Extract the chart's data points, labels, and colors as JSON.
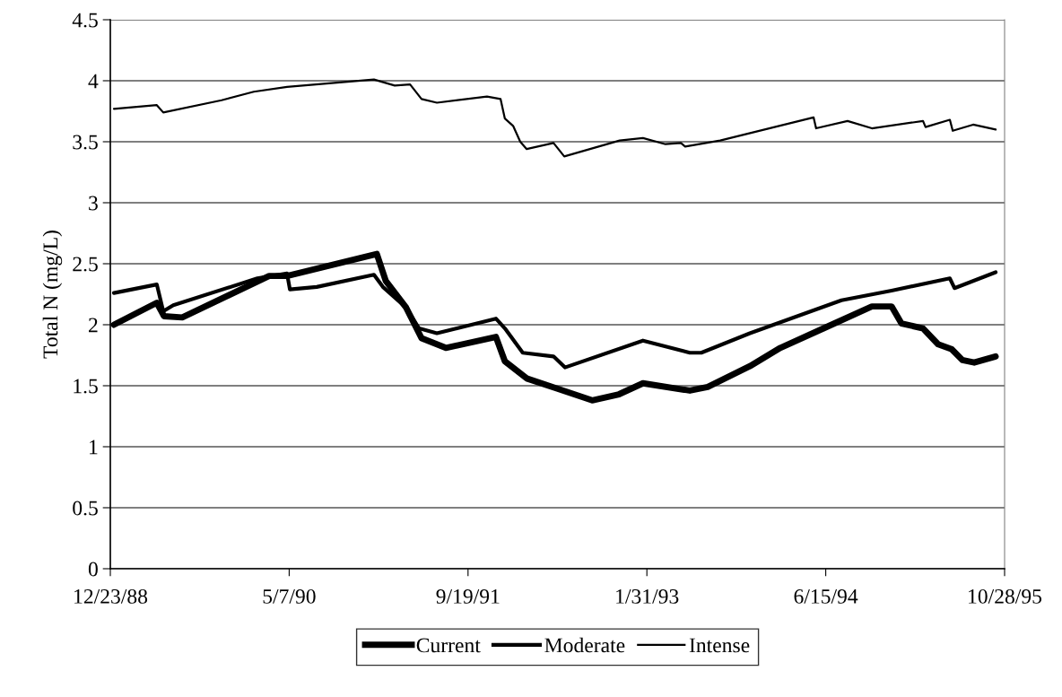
{
  "chart_data": {
    "type": "line",
    "ylabel": "Total N (mg/L)",
    "xlim": [
      "1988-12-23",
      "1995-10-28"
    ],
    "xticks": [
      {
        "value": "1988-12-23",
        "label": "12/23/88"
      },
      {
        "value": "1990-05-07",
        "label": "5/7/90"
      },
      {
        "value": "1991-09-19",
        "label": "9/19/91"
      },
      {
        "value": "1993-01-31",
        "label": "1/31/93"
      },
      {
        "value": "1994-06-15",
        "label": "6/15/94"
      },
      {
        "value": "1995-10-28",
        "label": "10/28/95"
      }
    ],
    "ylim": [
      0,
      4.5
    ],
    "yticks": [
      0,
      0.5,
      1,
      1.5,
      2,
      2.5,
      3,
      3.5,
      4,
      4.5
    ],
    "grid": "y",
    "legend": "bottom",
    "marker": "none",
    "line_style": "solid",
    "series": [
      {
        "name": "Current",
        "color": "#000000",
        "x": [
          "1989-01-02",
          "1989-05-02",
          "1989-05-22",
          "1989-07-12",
          "1990-03-12",
          "1990-05-01",
          "1991-01-07",
          "1991-02-01",
          "1991-03-30",
          "1991-05-12",
          "1991-07-19",
          "1991-12-06",
          "1991-12-31",
          "1992-03-01",
          "1992-05-22",
          "1992-08-31",
          "1992-11-14",
          "1993-01-20",
          "1993-05-31",
          "1993-07-20",
          "1993-11-15",
          "1994-02-08",
          "1994-06-16",
          "1994-10-22",
          "1994-12-16",
          "1995-01-13",
          "1995-03-14",
          "1995-04-25",
          "1995-06-02",
          "1995-07-02",
          "1995-08-04",
          "1995-10-03"
        ],
        "values": [
          2.0,
          2.18,
          2.07,
          2.06,
          2.4,
          2.4,
          2.58,
          2.36,
          2.14,
          1.89,
          1.81,
          1.9,
          1.7,
          1.56,
          1.48,
          1.38,
          1.43,
          1.52,
          1.46,
          1.49,
          1.66,
          1.81,
          1.98,
          2.15,
          2.15,
          2.01,
          1.97,
          1.84,
          1.8,
          1.71,
          1.69,
          1.74
        ]
      },
      {
        "name": "Moderate",
        "color": "#000000",
        "x": [
          "1989-01-02",
          "1989-05-02",
          "1989-05-20",
          "1989-06-17",
          "1990-02-07",
          "1990-05-01",
          "1990-05-09",
          "1990-07-23",
          "1990-12-30",
          "1991-01-24",
          "1991-03-30",
          "1991-05-05",
          "1991-06-24",
          "1991-12-06",
          "1991-12-31",
          "1992-02-19",
          "1992-05-15",
          "1992-06-16",
          "1993-01-20",
          "1993-05-31",
          "1993-07-02",
          "1993-11-15",
          "1994-07-29",
          "1994-12-16",
          "1995-05-28",
          "1995-06-10",
          "1995-10-03"
        ],
        "values": [
          2.26,
          2.33,
          2.11,
          2.16,
          2.38,
          2.42,
          2.29,
          2.31,
          2.41,
          2.31,
          2.14,
          1.97,
          1.93,
          2.05,
          1.97,
          1.77,
          1.74,
          1.65,
          1.87,
          1.77,
          1.77,
          1.93,
          2.2,
          2.28,
          2.38,
          2.3,
          2.43
        ]
      },
      {
        "name": "Intense",
        "color": "#000000",
        "x": [
          "1989-01-02",
          "1989-05-02",
          "1989-05-20",
          "1989-10-30",
          "1990-01-28",
          "1990-05-01",
          "1990-09-03",
          "1990-12-30",
          "1991-02-26",
          "1991-04-10",
          "1991-05-12",
          "1991-06-24",
          "1991-11-11",
          "1991-12-19",
          "1991-12-31",
          "1992-01-23",
          "1992-02-12",
          "1992-03-01",
          "1992-05-15",
          "1992-06-14",
          "1992-11-16",
          "1993-01-20",
          "1993-03-24",
          "1993-05-06",
          "1993-05-18",
          "1993-08-24",
          "1994-05-12",
          "1994-05-19",
          "1994-08-15",
          "1994-10-22",
          "1995-03-14",
          "1995-03-21",
          "1995-05-28",
          "1995-06-05",
          "1995-08-01",
          "1995-10-03"
        ],
        "values": [
          3.77,
          3.8,
          3.74,
          3.84,
          3.91,
          3.95,
          3.98,
          4.01,
          3.96,
          3.97,
          3.85,
          3.82,
          3.87,
          3.85,
          3.69,
          3.63,
          3.5,
          3.44,
          3.49,
          3.38,
          3.51,
          3.53,
          3.48,
          3.49,
          3.46,
          3.51,
          3.7,
          3.61,
          3.67,
          3.61,
          3.67,
          3.62,
          3.68,
          3.59,
          3.64,
          3.6
        ]
      }
    ]
  }
}
